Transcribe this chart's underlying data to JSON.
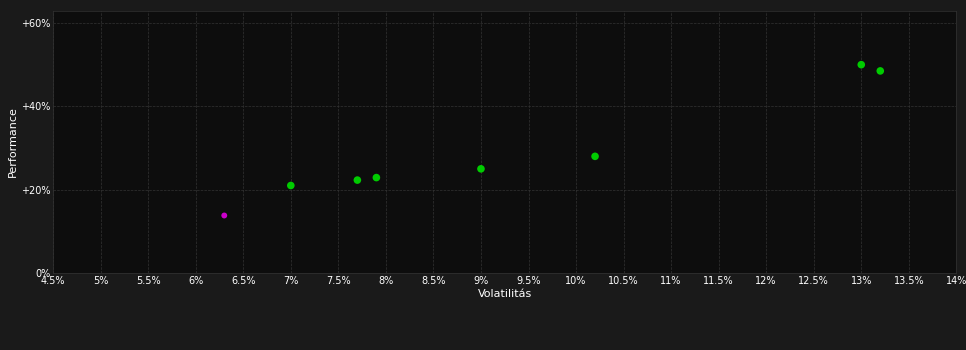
{
  "background_color": "#1a1a1a",
  "plot_bg_color": "#0d0d0d",
  "grid_color": "#333333",
  "text_color": "#ffffff",
  "xlabel": "Volatilitás",
  "ylabel": "Performance",
  "xlim": [
    0.045,
    0.14
  ],
  "ylim": [
    0.0,
    0.63
  ],
  "xticks": [
    0.045,
    0.05,
    0.055,
    0.06,
    0.065,
    0.07,
    0.075,
    0.08,
    0.085,
    0.09,
    0.095,
    0.1,
    0.105,
    0.11,
    0.115,
    0.12,
    0.125,
    0.13,
    0.135,
    0.14
  ],
  "yticks": [
    0.0,
    0.2,
    0.4,
    0.6
  ],
  "ytick_labels": [
    "0%",
    "+20%",
    "+40%",
    "+60%"
  ],
  "green_points": [
    [
      0.07,
      0.21
    ],
    [
      0.077,
      0.223
    ],
    [
      0.079,
      0.229
    ],
    [
      0.09,
      0.25
    ],
    [
      0.102,
      0.28
    ],
    [
      0.13,
      0.5
    ],
    [
      0.132,
      0.485
    ]
  ],
  "pink_points": [
    [
      0.063,
      0.138
    ]
  ],
  "green_color": "#00cc00",
  "pink_color": "#cc00cc",
  "marker_size": 30,
  "grid_linestyle": "--",
  "grid_linewidth": 0.5
}
